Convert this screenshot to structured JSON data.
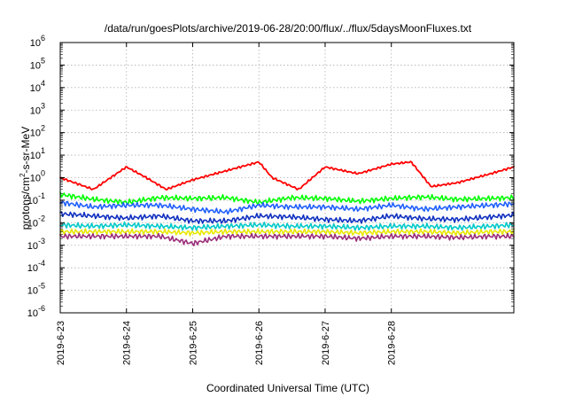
{
  "chart_data": {
    "type": "line",
    "title": "/data/run/goesPlots/archive/2019-06-28/20:00/flux/../flux/5daysMoonFluxes.txt",
    "xlabel": "Coordinated Universal Time (UTC)",
    "ylabel": "protons/cm2-s-sr-MeV",
    "ylabel_parts": {
      "pre": "protons/cm",
      "sup": "2",
      "post": "-s-sr-MeV"
    },
    "y_scale": "log",
    "ylim_exp": [
      -6,
      6
    ],
    "y_ticks": [
      {
        "base": "10",
        "exp": "-6"
      },
      {
        "base": "10",
        "exp": "-5"
      },
      {
        "base": "10",
        "exp": "-4"
      },
      {
        "base": "10",
        "exp": "-3"
      },
      {
        "base": "10",
        "exp": "-2"
      },
      {
        "base": "10",
        "exp": "-1"
      },
      {
        "base": "10",
        "exp": "0"
      },
      {
        "base": "10",
        "exp": "1"
      },
      {
        "base": "10",
        "exp": "2"
      },
      {
        "base": "10",
        "exp": "3"
      },
      {
        "base": "10",
        "exp": "4"
      },
      {
        "base": "10",
        "exp": "5"
      },
      {
        "base": "10",
        "exp": "6"
      }
    ],
    "x_ticks": [
      "2019-6-23",
      "2019-6-24",
      "2019-6-25",
      "2019-6-26",
      "2019-6-27",
      "2019-6-28"
    ],
    "x_range_days": [
      0,
      6.85
    ],
    "grid": true,
    "series": [
      {
        "color": "#ff0000",
        "x": [
          0,
          0.5,
          1.0,
          1.3,
          1.6,
          2.0,
          2.5,
          3.0,
          3.2,
          3.6,
          4.0,
          4.5,
          5.0,
          5.3,
          5.6,
          6.0,
          6.5,
          6.85
        ],
        "y": [
          1.0,
          0.3,
          3.0,
          1.0,
          0.3,
          0.8,
          2.0,
          5.0,
          1.0,
          0.3,
          3.0,
          1.5,
          4.0,
          5.0,
          0.4,
          0.6,
          1.5,
          3.0
        ]
      },
      {
        "color": "#00ff00",
        "x": [
          0,
          0.5,
          1.0,
          1.5,
          2.0,
          2.5,
          3.0,
          3.5,
          4.0,
          4.5,
          5.0,
          5.5,
          6.0,
          6.5,
          6.85
        ],
        "y": [
          0.18,
          0.11,
          0.08,
          0.13,
          0.12,
          0.13,
          0.08,
          0.13,
          0.12,
          0.09,
          0.12,
          0.14,
          0.11,
          0.12,
          0.13
        ]
      },
      {
        "color": "#2060ff",
        "x": [
          0,
          0.5,
          1.0,
          1.5,
          2.0,
          2.5,
          3.0,
          3.5,
          4.0,
          4.5,
          5.0,
          5.5,
          6.0,
          6.5,
          6.85
        ],
        "y": [
          0.08,
          0.05,
          0.06,
          0.06,
          0.04,
          0.03,
          0.06,
          0.05,
          0.05,
          0.04,
          0.06,
          0.04,
          0.05,
          0.06,
          0.07
        ]
      },
      {
        "color": "#1030c0",
        "x": [
          0,
          0.5,
          1.0,
          1.5,
          2.0,
          2.5,
          3.0,
          3.5,
          4.0,
          4.5,
          5.0,
          5.5,
          6.0,
          6.5,
          6.85
        ],
        "y": [
          0.025,
          0.02,
          0.016,
          0.02,
          0.012,
          0.012,
          0.02,
          0.018,
          0.014,
          0.012,
          0.02,
          0.015,
          0.014,
          0.018,
          0.022
        ]
      },
      {
        "color": "#00c8c8",
        "x": [
          0,
          0.5,
          1.0,
          1.5,
          2.0,
          2.5,
          3.0,
          3.5,
          4.0,
          4.5,
          5.0,
          5.5,
          6.0,
          6.5,
          6.85
        ],
        "y": [
          0.008,
          0.007,
          0.008,
          0.007,
          0.006,
          0.007,
          0.008,
          0.007,
          0.007,
          0.006,
          0.007,
          0.007,
          0.006,
          0.007,
          0.008
        ]
      },
      {
        "color": "#e8e800",
        "x": [
          0,
          0.5,
          1.0,
          1.5,
          2.0,
          2.5,
          3.0,
          3.5,
          4.0,
          4.5,
          5.0,
          5.5,
          6.0,
          6.5,
          6.85
        ],
        "y": [
          0.004,
          0.004,
          0.004,
          0.004,
          0.0035,
          0.004,
          0.004,
          0.004,
          0.004,
          0.0035,
          0.004,
          0.004,
          0.0035,
          0.004,
          0.004
        ]
      },
      {
        "color": "#9b2d7a",
        "x": [
          0,
          0.5,
          1.0,
          1.5,
          2.0,
          2.5,
          3.0,
          3.5,
          4.0,
          4.5,
          5.0,
          5.5,
          6.0,
          6.5,
          6.85
        ],
        "y": [
          0.0025,
          0.0025,
          0.0025,
          0.0025,
          0.0012,
          0.0025,
          0.0025,
          0.0025,
          0.0025,
          0.002,
          0.0025,
          0.0025,
          0.0022,
          0.0025,
          0.0025
        ]
      }
    ]
  }
}
